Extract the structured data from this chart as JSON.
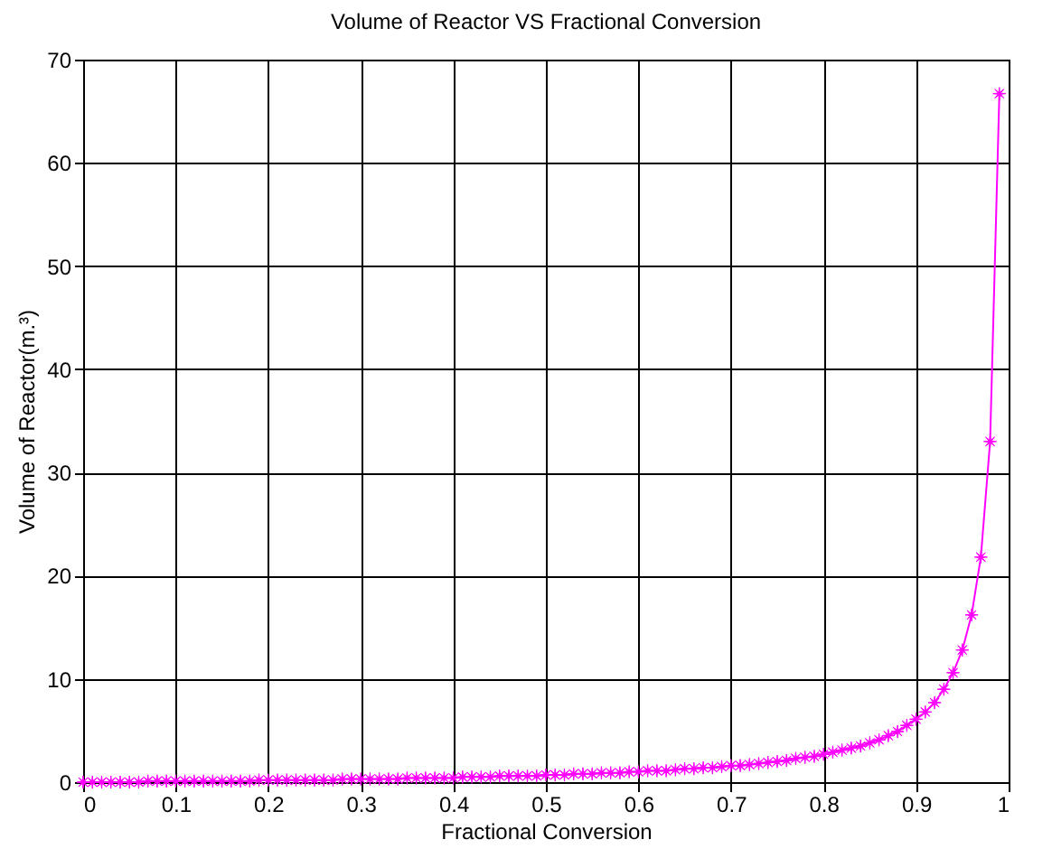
{
  "chart_data": {
    "type": "line",
    "title": "Volume of Reactor VS Fractional Conversion",
    "xlabel": "Fractional Conversion",
    "ylabel": "Volume of Reactor(m.³)",
    "x": [
      0,
      0.01,
      0.02,
      0.03,
      0.04,
      0.05,
      0.06,
      0.07,
      0.08,
      0.09,
      0.1,
      0.11,
      0.12,
      0.13,
      0.14,
      0.15,
      0.16,
      0.17,
      0.18,
      0.19,
      0.2,
      0.21,
      0.22,
      0.23,
      0.24,
      0.25,
      0.26,
      0.27,
      0.28,
      0.29,
      0.3,
      0.31,
      0.32,
      0.33,
      0.34,
      0.35,
      0.36,
      0.37,
      0.38,
      0.39,
      0.4,
      0.41,
      0.42,
      0.43,
      0.44,
      0.45,
      0.46,
      0.47,
      0.48,
      0.49,
      0.5,
      0.51,
      0.52,
      0.53,
      0.54,
      0.55,
      0.56,
      0.57,
      0.58,
      0.59,
      0.6,
      0.61,
      0.62,
      0.63,
      0.64,
      0.65,
      0.66,
      0.67,
      0.68,
      0.69,
      0.7,
      0.71,
      0.72,
      0.73,
      0.74,
      0.75,
      0.76,
      0.77,
      0.78,
      0.79,
      0.8,
      0.81,
      0.82,
      0.83,
      0.84,
      0.85,
      0.86,
      0.87,
      0.88,
      0.89,
      0.9,
      0.91,
      0.92,
      0.93,
      0.94,
      0.95,
      0.96,
      0.97,
      0.98,
      0.99
    ],
    "series": [
      {
        "color": "#ff00ff",
        "values": [
          0,
          0,
          0,
          0,
          0,
          0,
          0,
          0.1,
          0.1,
          0.1,
          0.1,
          0.1,
          0.1,
          0.1,
          0.1,
          0.1,
          0.1,
          0.1,
          0.1,
          0.2,
          0.2,
          0.2,
          0.2,
          0.2,
          0.2,
          0.2,
          0.2,
          0.2,
          0.3,
          0.3,
          0.3,
          0.3,
          0.3,
          0.3,
          0.3,
          0.4,
          0.4,
          0.4,
          0.4,
          0.4,
          0.4,
          0.5,
          0.5,
          0.5,
          0.5,
          0.6,
          0.6,
          0.6,
          0.6,
          0.6,
          0.7,
          0.7,
          0.7,
          0.8,
          0.8,
          0.8,
          0.9,
          0.9,
          0.9,
          1.0,
          1.0,
          1.1,
          1.1,
          1.1,
          1.2,
          1.3,
          1.3,
          1.4,
          1.4,
          1.5,
          1.6,
          1.6,
          1.7,
          1.8,
          1.9,
          2.0,
          2.1,
          2.3,
          2.4,
          2.5,
          2.7,
          2.9,
          3.1,
          3.3,
          3.5,
          3.8,
          4.1,
          4.5,
          4.9,
          5.5,
          6.1,
          6.8,
          7.7,
          9.0,
          10.6,
          12.8,
          16.2,
          21.8,
          33.0,
          66.7
        ]
      }
    ],
    "xlim": [
      0,
      1
    ],
    "xticks": [
      0,
      0.1,
      0.2,
      0.3,
      0.4,
      0.5,
      0.6,
      0.7,
      0.8,
      0.9,
      1
    ],
    "ylim": [
      0,
      70
    ],
    "yticks": [
      0,
      10,
      20,
      30,
      40,
      50,
      60,
      70
    ],
    "grid": true,
    "marker": "star",
    "line_style": "solid"
  }
}
